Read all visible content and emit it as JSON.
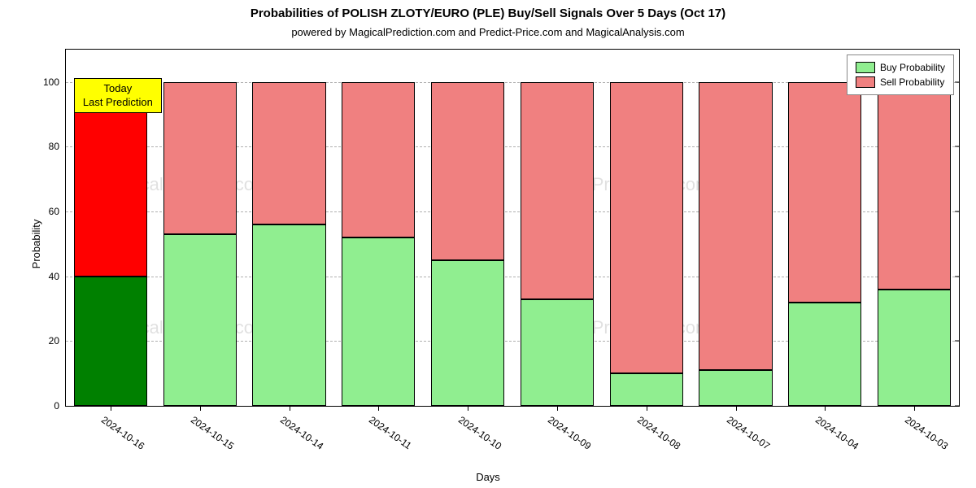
{
  "chart": {
    "type": "stacked-bar",
    "title": "Probabilities of POLISH ZLOTY/EURO (PLE) Buy/Sell Signals Over 5 Days (Oct 17)",
    "title_fontsize": 15,
    "subtitle": "powered by MagicalPrediction.com and Predict-Price.com and MagicalAnalysis.com",
    "subtitle_fontsize": 13,
    "xlabel": "Days",
    "ylabel": "Probability",
    "label_fontsize": 13,
    "background_color": "#ffffff",
    "border_color": "#000000",
    "grid_color": "#b0b0b0",
    "ylim": [
      0,
      110
    ],
    "ytick_step": 20,
    "yticks": [
      0,
      20,
      40,
      60,
      80,
      100
    ],
    "bar_width": 0.82,
    "categories": [
      "2024-10-16",
      "2024-10-15",
      "2024-10-14",
      "2024-10-11",
      "2024-10-10",
      "2024-10-09",
      "2024-10-08",
      "2024-10-07",
      "2024-10-04",
      "2024-10-03"
    ],
    "series": {
      "buy": [
        40,
        53,
        56,
        52,
        45,
        33,
        10,
        11,
        32,
        36
      ],
      "sell": [
        60,
        47,
        44,
        48,
        55,
        67,
        90,
        89,
        68,
        64
      ]
    },
    "buy_colors": [
      "#008000",
      "#90ee90",
      "#90ee90",
      "#90ee90",
      "#90ee90",
      "#90ee90",
      "#90ee90",
      "#90ee90",
      "#90ee90",
      "#90ee90"
    ],
    "sell_colors": [
      "#ff0000",
      "#f08080",
      "#f08080",
      "#f08080",
      "#f08080",
      "#f08080",
      "#f08080",
      "#f08080",
      "#f08080",
      "#f08080"
    ],
    "legend": {
      "position": "top-right",
      "items": [
        {
          "label": "Buy Probability",
          "color": "#90ee90"
        },
        {
          "label": "Sell Probability",
          "color": "#f08080"
        }
      ]
    },
    "annotation": {
      "line1": "Today",
      "line2": "Last Prediction",
      "background": "#ffff00",
      "border": "#000000"
    },
    "watermark": {
      "text1": "MagicalAnalysis.com",
      "text2": "MagicalPrediction.com",
      "color": "rgba(0,0,0,0.12)"
    }
  }
}
